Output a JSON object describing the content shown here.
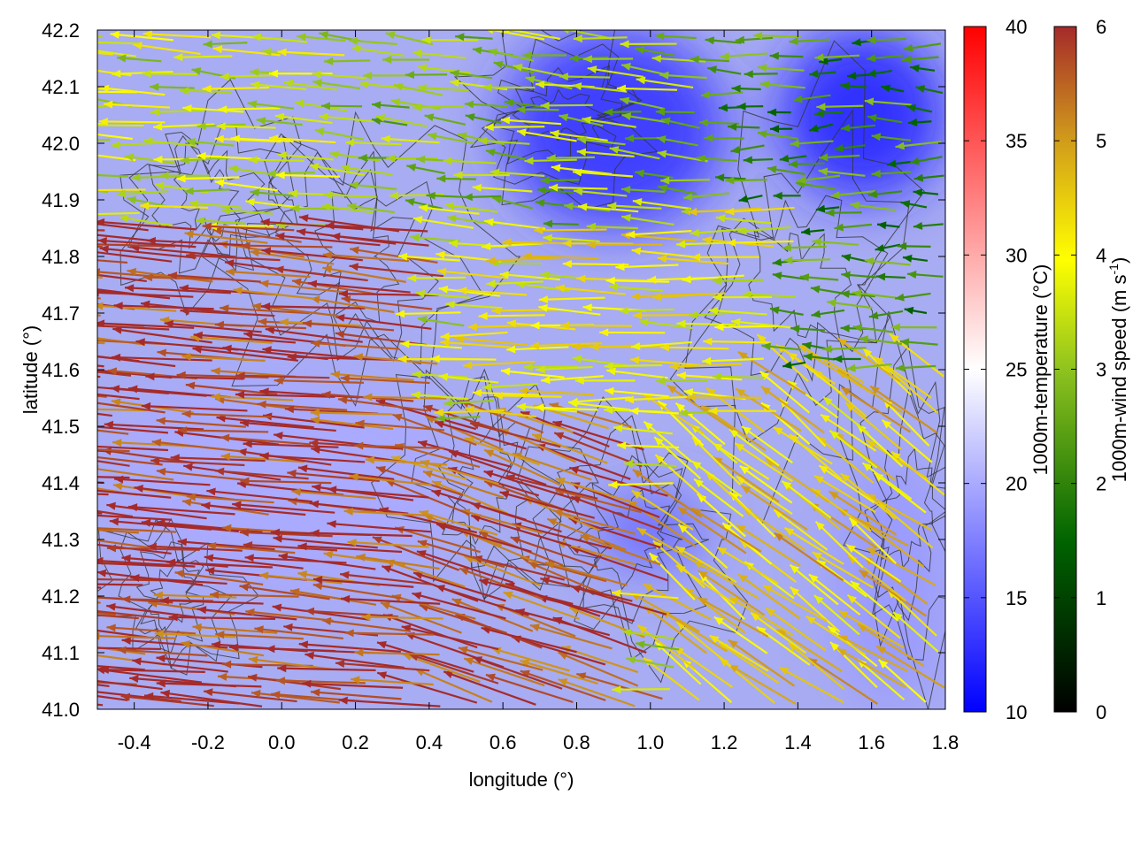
{
  "chart_data": {
    "type": "vector-field",
    "xlabel": "longitude (°)",
    "ylabel": "latitude (°)",
    "xlim": [
      -0.5,
      1.8
    ],
    "ylim": [
      41.0,
      42.2
    ],
    "x_ticks": [
      -0.4,
      -0.2,
      0.0,
      0.2,
      0.4,
      0.6,
      0.8,
      1.0,
      1.2,
      1.4,
      1.6,
      1.8
    ],
    "x_tick_labels": [
      "-0.4",
      "-0.2",
      "0.0",
      "0.2",
      "0.4",
      "0.6",
      "0.8",
      "1.0",
      "1.2",
      "1.4",
      "1.6",
      "1.8"
    ],
    "y_ticks": [
      41.0,
      41.1,
      41.2,
      41.3,
      41.4,
      41.5,
      41.6,
      41.7,
      41.8,
      41.9,
      42.0,
      42.1,
      42.2
    ],
    "y_tick_labels": [
      "41.0",
      "41.1",
      "41.2",
      "41.3",
      "41.4",
      "41.5",
      "41.6",
      "41.7",
      "41.8",
      "41.9",
      "42.0",
      "42.1",
      "42.2"
    ],
    "temperature_colorbar": {
      "label": "1000m-temperature (°C)",
      "range": [
        10,
        40
      ],
      "ticks": [
        10,
        15,
        20,
        25,
        30,
        35,
        40
      ],
      "tick_labels": [
        "10",
        "15",
        "20",
        "25",
        "30",
        "35",
        "40"
      ],
      "colors": [
        "#0000ff",
        "#ffffff",
        "#ff0000"
      ]
    },
    "wind_colorbar": {
      "label_main": "1000m-wind speed (m s",
      "label_sup": "-1",
      "label_end": ")",
      "range": [
        0,
        6
      ],
      "ticks": [
        0,
        1,
        2,
        3,
        4,
        5,
        6
      ],
      "tick_labels": [
        "0",
        "1",
        "2",
        "3",
        "4",
        "5",
        "6"
      ],
      "colors": [
        "#000000",
        "#006400",
        "#8fc31f",
        "#ffff00",
        "#d29e1a",
        "#a52a2a"
      ]
    },
    "temperature_field_regions": [
      {
        "lon": [
          0.6,
          1.2
        ],
        "lat": [
          41.85,
          42.2
        ],
        "t": 13
      },
      {
        "lon": [
          1.35,
          1.8
        ],
        "lat": [
          41.9,
          42.2
        ],
        "t": 12
      },
      {
        "lon": [
          -0.5,
          0.5
        ],
        "lat": [
          41.2,
          41.6
        ],
        "t": 20
      },
      {
        "lon": [
          1.5,
          1.8
        ],
        "lat": [
          41.0,
          41.45
        ],
        "t": 19
      },
      {
        "lon": [
          0.85,
          1.15
        ],
        "lat": [
          41.25,
          41.38
        ],
        "t": 16
      }
    ],
    "wind_regions": [
      {
        "lon": [
          -0.5,
          0.45
        ],
        "lat": [
          41.0,
          41.85
        ],
        "u": -5.9,
        "v": 0.5
      },
      {
        "lon": [
          0.45,
          1.05
        ],
        "lat": [
          41.0,
          41.5
        ],
        "u": -5.5,
        "v": 1.8
      },
      {
        "lon": [
          0.2,
          1.2
        ],
        "lat": [
          41.85,
          42.2
        ],
        "u": -3.0,
        "v": 0.3
      },
      {
        "lon": [
          0.6,
          1.4
        ],
        "lat": [
          41.5,
          41.9
        ],
        "u": -4.0,
        "v": 0.1
      },
      {
        "lon": [
          1.2,
          1.8
        ],
        "lat": [
          41.6,
          42.2
        ],
        "u": -2.2,
        "v": 0.0
      },
      {
        "lon": [
          1.1,
          1.8
        ],
        "lat": [
          41.0,
          41.6
        ],
        "u": -3.6,
        "v": 2.6
      }
    ]
  }
}
